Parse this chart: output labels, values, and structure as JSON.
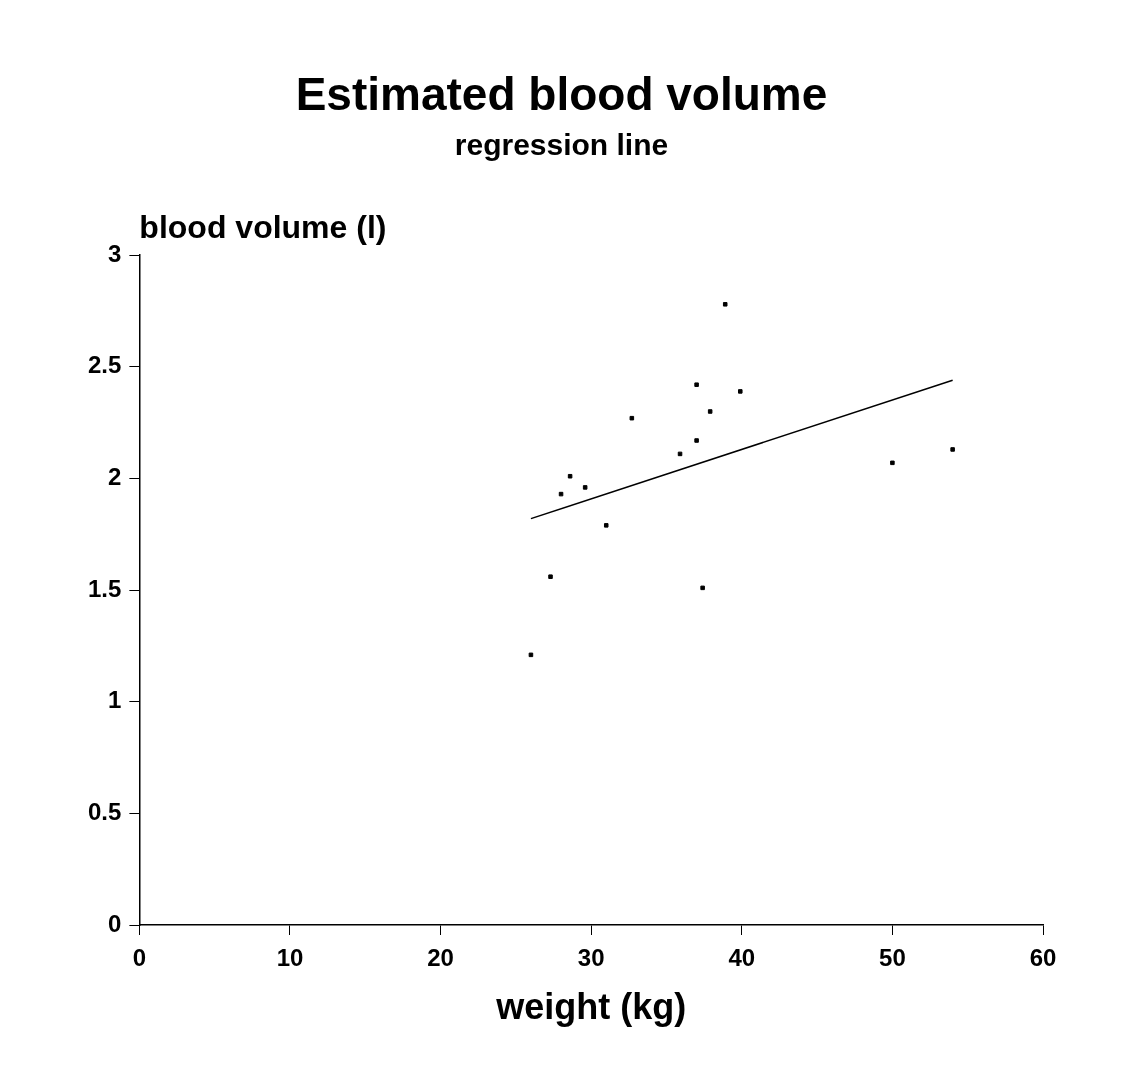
{
  "chart_data": {
    "type": "scatter",
    "title": "Estimated blood volume",
    "subtitle": "regression line",
    "xlabel": "weight (kg)",
    "ylabel": "blood volume (l)",
    "xlim": [
      0,
      60
    ],
    "xticks": [
      0,
      10,
      20,
      30,
      40,
      50,
      60
    ],
    "ylim": [
      0,
      3
    ],
    "yticks": [
      0,
      0.5,
      1,
      1.5,
      2,
      2.5,
      3
    ],
    "grid": false,
    "legend": false,
    "series": [
      {
        "color": "#000000",
        "marker": "square",
        "x": [
          26,
          27.3,
          28,
          28.6,
          29.6,
          31,
          32.7,
          35.9,
          37,
          37,
          37.4,
          37.9,
          38.9,
          39.9,
          50,
          54
        ],
        "values": [
          1.21,
          1.56,
          1.93,
          2.01,
          1.96,
          1.79,
          2.27,
          2.11,
          2.17,
          2.42,
          1.51,
          2.3,
          2.78,
          2.39,
          2.07,
          2.13
        ]
      },
      {
        "type": "line",
        "color": "#000000",
        "marker": "none",
        "line_style": "solid",
        "x": [
          26,
          54
        ],
        "values": [
          1.82,
          2.44
        ]
      }
    ]
  }
}
